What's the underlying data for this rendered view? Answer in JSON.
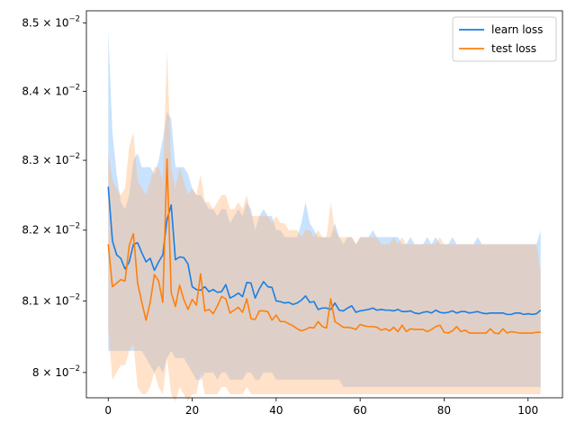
{
  "chart_data": {
    "type": "line",
    "title": "",
    "xlabel": "",
    "ylabel": "",
    "yscale": "log",
    "xlim": [
      -5.2,
      108.2
    ],
    "ylim": [
      0.07965,
      0.08518
    ],
    "grid": false,
    "legend_position": "top-right",
    "x_ticks": [
      0,
      20,
      40,
      60,
      80,
      100
    ],
    "x_tick_labels": [
      "0",
      "20",
      "40",
      "60",
      "80",
      "100"
    ],
    "y_ticks": [
      {
        "value": 0.085,
        "mantissa": "8.5",
        "exp": "−2"
      },
      {
        "value": 0.084,
        "mantissa": "8.4",
        "exp": "−2"
      },
      {
        "value": 0.083,
        "mantissa": "8.3",
        "exp": "−2"
      },
      {
        "value": 0.082,
        "mantissa": "8.2",
        "exp": "−2"
      },
      {
        "value": 0.081,
        "mantissa": "8.1",
        "exp": "−2"
      },
      {
        "value": 0.08,
        "mantissa": "8",
        "exp": "−2"
      }
    ],
    "x": [
      0,
      1,
      2,
      3,
      4,
      5,
      6,
      7,
      8,
      9,
      10,
      11,
      12,
      13,
      14,
      15,
      16,
      17,
      18,
      19,
      20,
      21,
      22,
      23,
      24,
      25,
      26,
      27,
      28,
      29,
      30,
      31,
      32,
      33,
      34,
      35,
      36,
      37,
      38,
      39,
      40,
      41,
      42,
      43,
      44,
      45,
      46,
      47,
      48,
      49,
      50,
      51,
      52,
      53,
      54,
      55,
      56,
      57,
      58,
      59,
      60,
      61,
      62,
      63,
      64,
      65,
      66,
      67,
      68,
      69,
      70,
      71,
      72,
      73,
      74,
      75,
      76,
      77,
      78,
      79,
      80,
      81,
      82,
      83,
      84,
      85,
      86,
      87,
      88,
      89,
      90,
      91,
      92,
      93,
      94,
      95,
      96,
      97,
      98,
      99,
      100,
      101,
      102,
      103
    ],
    "series": [
      {
        "name": "learn loss",
        "color": "#1f77b4",
        "line_color": "#1a7ee3",
        "band_color": "#64abf8",
        "mean": [
          0.08262,
          0.08185,
          0.08165,
          0.0816,
          0.08145,
          0.08155,
          0.0818,
          0.08182,
          0.08168,
          0.08155,
          0.0816,
          0.08143,
          0.08155,
          0.08165,
          0.08215,
          0.08236,
          0.08158,
          0.08162,
          0.08161,
          0.08152,
          0.0812,
          0.08116,
          0.08115,
          0.0812,
          0.08113,
          0.08116,
          0.08112,
          0.08113,
          0.08123,
          0.08104,
          0.08107,
          0.08111,
          0.08106,
          0.08126,
          0.08125,
          0.08104,
          0.08117,
          0.08127,
          0.0812,
          0.08119,
          0.081,
          0.08099,
          0.08097,
          0.08098,
          0.08095,
          0.08097,
          0.08101,
          0.08107,
          0.08098,
          0.08099,
          0.08088,
          0.0809,
          0.0809,
          0.08088,
          0.08097,
          0.08087,
          0.08086,
          0.0809,
          0.08093,
          0.08084,
          0.08086,
          0.08087,
          0.08088,
          0.0809,
          0.08087,
          0.08088,
          0.08087,
          0.08087,
          0.08086,
          0.08088,
          0.08085,
          0.08085,
          0.08086,
          0.08083,
          0.08082,
          0.08084,
          0.08085,
          0.08083,
          0.08087,
          0.08084,
          0.08083,
          0.08084,
          0.08086,
          0.08083,
          0.08085,
          0.08085,
          0.08083,
          0.08084,
          0.08085,
          0.08083,
          0.08082,
          0.08083,
          0.08083,
          0.08083,
          0.08083,
          0.08081,
          0.08081,
          0.08083,
          0.08083,
          0.08081,
          0.08082,
          0.08081,
          0.08082,
          0.08087
        ],
        "upper": [
          0.0849,
          0.0834,
          0.0828,
          0.0824,
          0.0823,
          0.0825,
          0.083,
          0.0831,
          0.0829,
          0.0829,
          0.0829,
          0.0828,
          0.083,
          0.0833,
          0.0837,
          0.0836,
          0.0829,
          0.0829,
          0.0829,
          0.0828,
          0.0826,
          0.0825,
          0.0825,
          0.0824,
          0.0823,
          0.0823,
          0.0822,
          0.0823,
          0.0823,
          0.0821,
          0.0822,
          0.0823,
          0.0822,
          0.0824,
          0.0823,
          0.082,
          0.0822,
          0.0823,
          0.0822,
          0.0822,
          0.082,
          0.082,
          0.0819,
          0.0819,
          0.0819,
          0.0819,
          0.0821,
          0.0824,
          0.0821,
          0.082,
          0.0819,
          0.0819,
          0.0819,
          0.0819,
          0.0821,
          0.0819,
          0.0818,
          0.0819,
          0.0819,
          0.0818,
          0.0819,
          0.0819,
          0.0819,
          0.082,
          0.0819,
          0.0819,
          0.0819,
          0.0819,
          0.0819,
          0.0819,
          0.0818,
          0.0818,
          0.0819,
          0.0818,
          0.0818,
          0.0818,
          0.0819,
          0.0818,
          0.0819,
          0.0818,
          0.0818,
          0.0818,
          0.0819,
          0.0818,
          0.0818,
          0.0818,
          0.0818,
          0.0818,
          0.0819,
          0.0818,
          0.0818,
          0.0818,
          0.0818,
          0.0818,
          0.0818,
          0.0818,
          0.0818,
          0.0818,
          0.0818,
          0.0818,
          0.0818,
          0.0818,
          0.0818,
          0.082
        ],
        "lower": [
          0.0803,
          0.0803,
          0.0803,
          0.0803,
          0.0803,
          0.0803,
          0.0803,
          0.0803,
          0.0803,
          0.0802,
          0.0801,
          0.08,
          0.0801,
          0.08,
          0.0802,
          0.0803,
          0.0802,
          0.0802,
          0.0802,
          0.0801,
          0.08,
          0.0799,
          0.0799,
          0.08,
          0.08,
          0.08,
          0.0799,
          0.08,
          0.08,
          0.0799,
          0.0799,
          0.0799,
          0.0799,
          0.08,
          0.08,
          0.0799,
          0.0799,
          0.08,
          0.08,
          0.08,
          0.0799,
          0.0799,
          0.0799,
          0.0799,
          0.0799,
          0.0799,
          0.0799,
          0.0799,
          0.0799,
          0.0799,
          0.0799,
          0.0799,
          0.0799,
          0.0799,
          0.0799,
          0.0799,
          0.0798,
          0.0798,
          0.0798,
          0.0798,
          0.0798,
          0.0798,
          0.0798,
          0.0798,
          0.0798,
          0.0798,
          0.0798,
          0.0798,
          0.0798,
          0.0798,
          0.0798,
          0.0798,
          0.0798,
          0.0798,
          0.0798,
          0.0798,
          0.0798,
          0.0798,
          0.0798,
          0.0798,
          0.0798,
          0.0798,
          0.0798,
          0.0798,
          0.0798,
          0.0798,
          0.0798,
          0.0798,
          0.0798,
          0.0798,
          0.0798,
          0.0798,
          0.0798,
          0.0798,
          0.0798,
          0.0798,
          0.0798,
          0.0798,
          0.0798,
          0.0798,
          0.0798,
          0.0798,
          0.0798,
          0.0798
        ]
      },
      {
        "name": "test loss",
        "color": "#ff7f0e",
        "line_color": "#ff7f0e",
        "band_color": "#ffb779",
        "mean": [
          0.0818,
          0.0812,
          0.08125,
          0.0813,
          0.08128,
          0.08178,
          0.08195,
          0.08125,
          0.08098,
          0.08073,
          0.08098,
          0.08137,
          0.08128,
          0.08098,
          0.08302,
          0.08112,
          0.08092,
          0.08122,
          0.08102,
          0.08088,
          0.08102,
          0.08094,
          0.08138,
          0.08086,
          0.08088,
          0.08082,
          0.08093,
          0.08106,
          0.08103,
          0.08083,
          0.08087,
          0.08091,
          0.08084,
          0.08103,
          0.08075,
          0.08074,
          0.08086,
          0.08086,
          0.08085,
          0.08073,
          0.0808,
          0.08071,
          0.08071,
          0.08068,
          0.08065,
          0.08061,
          0.08058,
          0.0806,
          0.08063,
          0.08062,
          0.08071,
          0.08064,
          0.08062,
          0.08103,
          0.08071,
          0.08067,
          0.08063,
          0.08063,
          0.08062,
          0.0806,
          0.08067,
          0.08065,
          0.08064,
          0.08064,
          0.08063,
          0.08059,
          0.08061,
          0.08058,
          0.08063,
          0.08057,
          0.08066,
          0.08057,
          0.08061,
          0.0806,
          0.0806,
          0.0806,
          0.08057,
          0.0806,
          0.08064,
          0.08066,
          0.08056,
          0.08055,
          0.08058,
          0.08064,
          0.08057,
          0.08059,
          0.08055,
          0.08055,
          0.08055,
          0.08055,
          0.08055,
          0.08061,
          0.08055,
          0.08054,
          0.08061,
          0.08055,
          0.08057,
          0.08056,
          0.08055,
          0.08055,
          0.08055,
          0.08055,
          0.08056,
          0.08056
        ],
        "upper": [
          0.0831,
          0.0827,
          0.0826,
          0.0825,
          0.0826,
          0.0832,
          0.0834,
          0.0827,
          0.0826,
          0.0825,
          0.0827,
          0.0829,
          0.0829,
          0.0827,
          0.0846,
          0.0829,
          0.0826,
          0.0829,
          0.0827,
          0.0825,
          0.0826,
          0.0825,
          0.0828,
          0.0824,
          0.0824,
          0.0823,
          0.0824,
          0.0825,
          0.0825,
          0.0823,
          0.0823,
          0.0824,
          0.0823,
          0.0825,
          0.0822,
          0.0822,
          0.0822,
          0.0822,
          0.0822,
          0.0821,
          0.0822,
          0.0821,
          0.0821,
          0.082,
          0.082,
          0.082,
          0.0819,
          0.082,
          0.082,
          0.0819,
          0.082,
          0.0819,
          0.0819,
          0.0824,
          0.082,
          0.0819,
          0.0819,
          0.0819,
          0.0819,
          0.0818,
          0.0819,
          0.0819,
          0.0819,
          0.0819,
          0.0819,
          0.0818,
          0.0818,
          0.0818,
          0.0819,
          0.0818,
          0.0819,
          0.0818,
          0.0818,
          0.0818,
          0.0818,
          0.0818,
          0.0818,
          0.0818,
          0.0818,
          0.0819,
          0.0818,
          0.0818,
          0.0818,
          0.0818,
          0.0818,
          0.0818,
          0.0818,
          0.0818,
          0.0818,
          0.0818,
          0.0818,
          0.0818,
          0.0818,
          0.0818,
          0.0818,
          0.0818,
          0.0818,
          0.0818,
          0.0818,
          0.0818,
          0.0818,
          0.0818,
          0.0818,
          0.0814
        ],
        "lower": [
          0.0806,
          0.0799,
          0.08,
          0.0801,
          0.0801,
          0.0803,
          0.0804,
          0.0798,
          0.0797,
          0.0797,
          0.0798,
          0.08,
          0.0798,
          0.0797,
          0.0802,
          0.0797,
          0.0796,
          0.0798,
          0.0797,
          0.0796,
          0.0797,
          0.0797,
          0.08,
          0.0797,
          0.0797,
          0.0797,
          0.0797,
          0.0798,
          0.0798,
          0.0797,
          0.0797,
          0.0797,
          0.0797,
          0.0798,
          0.0797,
          0.0797,
          0.0797,
          0.0797,
          0.0797,
          0.0797,
          0.0797,
          0.0797,
          0.0797,
          0.0797,
          0.0797,
          0.0797,
          0.0797,
          0.0797,
          0.0797,
          0.0797,
          0.0797,
          0.0797,
          0.0797,
          0.0797,
          0.0797,
          0.0797,
          0.0797,
          0.0797,
          0.0797,
          0.0797,
          0.0797,
          0.0797,
          0.0797,
          0.0797,
          0.0797,
          0.0797,
          0.0797,
          0.0797,
          0.0797,
          0.0797,
          0.0797,
          0.0797,
          0.0797,
          0.0797,
          0.0797,
          0.0797,
          0.0797,
          0.0797,
          0.0797,
          0.0797,
          0.0797,
          0.0797,
          0.0797,
          0.0797,
          0.0797,
          0.0797,
          0.0797,
          0.0797,
          0.0797,
          0.0797,
          0.0797,
          0.0797,
          0.0797,
          0.0797,
          0.0797,
          0.0797,
          0.0797,
          0.0797,
          0.0797,
          0.0797,
          0.0797,
          0.0797,
          0.0797,
          0.0797
        ]
      }
    ]
  }
}
